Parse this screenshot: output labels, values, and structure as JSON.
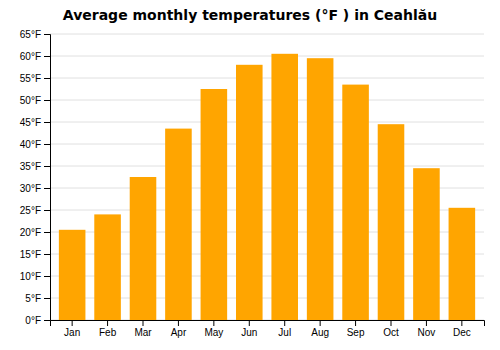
{
  "chart_data": {
    "type": "bar",
    "title": "Average monthly temperatures (°F ) in Ceahlău",
    "categories": [
      "Jan",
      "Feb",
      "Mar",
      "Apr",
      "May",
      "Jun",
      "Jul",
      "Aug",
      "Sep",
      "Oct",
      "Nov",
      "Dec"
    ],
    "values": [
      20.5,
      24.0,
      32.5,
      43.5,
      52.5,
      58.0,
      60.5,
      59.5,
      53.5,
      44.5,
      34.5,
      25.5
    ],
    "color": "#FFA500",
    "ylim": [
      0,
      65
    ],
    "yticks": [
      {
        "value": 0,
        "label": "0°F"
      },
      {
        "value": 5,
        "label": "5°F"
      },
      {
        "value": 10,
        "label": "10°F"
      },
      {
        "value": 15,
        "label": "15°F"
      },
      {
        "value": 20,
        "label": "20°F"
      },
      {
        "value": 25,
        "label": "25°F"
      },
      {
        "value": 30,
        "label": "30°F"
      },
      {
        "value": 35,
        "label": "35°F"
      },
      {
        "value": 40,
        "label": "40°F"
      },
      {
        "value": 45,
        "label": "45°F"
      },
      {
        "value": 50,
        "label": "50°F"
      },
      {
        "value": 55,
        "label": "55°F"
      },
      {
        "value": 60,
        "label": "60°F"
      },
      {
        "value": 65,
        "label": "65°F"
      }
    ],
    "grid": true
  }
}
